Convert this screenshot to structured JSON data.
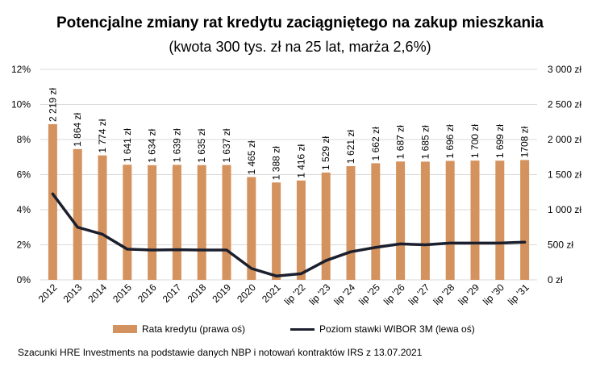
{
  "title": "Potencjalne zmiany rat kredytu zaciągniętego na zakup mieszkania",
  "subtitle": "(kwota 300 tys. zł na 25 lat, marża 2,6%)",
  "source": "Szacunki HRE Investments na podstawie danych NBP i notowań kontraktów IRS z 13.07.2021",
  "colors": {
    "bar": "#D4935E",
    "line": "#1B1F2E",
    "grid": "#D9D9D9"
  },
  "chart_data": {
    "type": "bar+line",
    "categories": [
      "2012",
      "2013",
      "2014",
      "2015",
      "2016",
      "2017",
      "2018",
      "2019",
      "2020",
      "2021",
      "lip '22",
      "lip '23",
      "lip '24",
      "lip '25",
      "lip '26",
      "lip '27",
      "lip '28",
      "lip '29",
      "lip '30",
      "lip '31"
    ],
    "series": [
      {
        "name": "Rata kredytu (prawa oś)",
        "type": "bar",
        "axis": "right",
        "values": [
          2219,
          1864,
          1774,
          1641,
          1634,
          1639,
          1635,
          1637,
          1465,
          1388,
          1416,
          1529,
          1621,
          1662,
          1687,
          1685,
          1696,
          1700,
          1699,
          1708
        ],
        "labels": [
          "2 219 zł",
          "1 864 zł",
          "1 774 zł",
          "1 641 zł",
          "1 634 zł",
          "1 639 zł",
          "1 635 zł",
          "1 637 zł",
          "1 465 zł",
          "1 388 zł",
          "1 416 zł",
          "1 529 zł",
          "1 621 zł",
          "1 662 zł",
          "1 687 zł",
          "1 685 zł",
          "1 696 zł",
          "1 700 zł",
          "1 699 zł",
          "1708 zł"
        ]
      },
      {
        "name": "Poziom stawki WIBOR 3M (lewa oś)",
        "type": "line",
        "axis": "left",
        "values": [
          4.9,
          3.0,
          2.6,
          1.75,
          1.7,
          1.72,
          1.7,
          1.7,
          0.65,
          0.22,
          0.35,
          1.1,
          1.6,
          1.85,
          2.05,
          2.0,
          2.1,
          2.1,
          2.1,
          2.15
        ]
      }
    ],
    "y_left": {
      "ylim": [
        0,
        12
      ],
      "ticks": [
        "0%",
        "2%",
        "4%",
        "6%",
        "8%",
        "10%",
        "12%"
      ]
    },
    "y_right": {
      "ylim": [
        0,
        3000
      ],
      "ticks": [
        "0 zł",
        "500 zł",
        "1 000 zł",
        "1 500 zł",
        "2 000 zł",
        "2 500 zł",
        "3 000 zł"
      ]
    },
    "grid": true,
    "legend": "bottom"
  }
}
